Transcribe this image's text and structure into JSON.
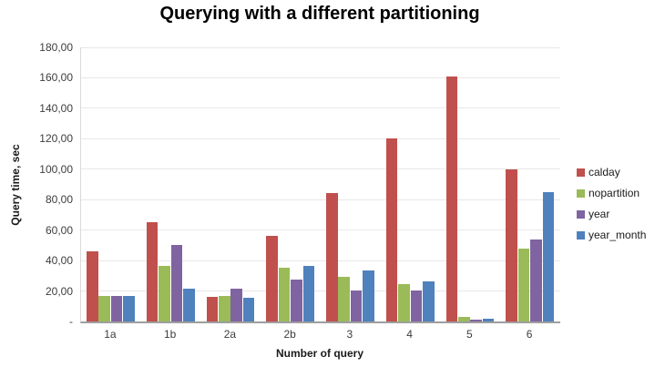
{
  "chart_data": {
    "type": "bar",
    "title": "Querying with a different partitioning",
    "xlabel": "Number of query",
    "ylabel": "Query time, sec",
    "ylim": [
      0,
      180
    ],
    "ytick_step": 20,
    "ytick_labels": [
      "-",
      "20,00",
      "40,00",
      "60,00",
      "80,00",
      "100,00",
      "120,00",
      "140,00",
      "160,00",
      "180,00"
    ],
    "grid": "horizontal",
    "legend_position": "right",
    "categories": [
      "1a",
      "1b",
      "2a",
      "2b",
      "3",
      "4",
      "5",
      "6"
    ],
    "series": [
      {
        "name": "calday",
        "color": "#C0504D",
        "values": [
          46,
          65,
          16,
          56,
          84.5,
          120,
          161,
          100
        ]
      },
      {
        "name": "nopartition",
        "color": "#9BBB59",
        "values": [
          16.5,
          36.5,
          17,
          35,
          29.5,
          24.5,
          3,
          48
        ]
      },
      {
        "name": "year",
        "color": "#8064A2",
        "values": [
          17,
          50.5,
          21.5,
          27.5,
          20.5,
          20.5,
          1,
          54
        ]
      },
      {
        "name": "year_month",
        "color": "#4F81BD",
        "values": [
          16.5,
          21.5,
          15.5,
          36.5,
          33.5,
          26.5,
          2,
          85
        ]
      }
    ]
  }
}
